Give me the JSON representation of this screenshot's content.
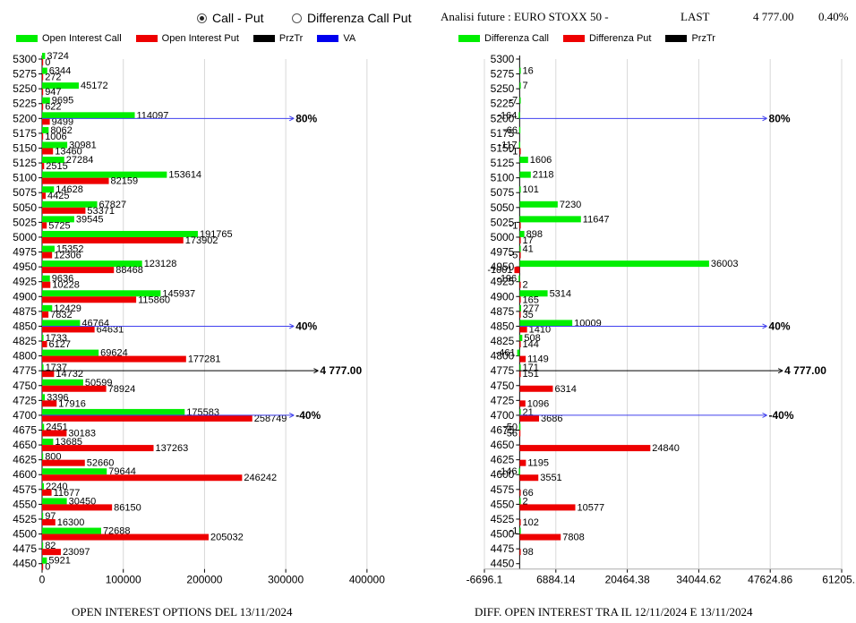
{
  "controls": {
    "radio_call_put": "Call - Put",
    "radio_diff": "Differenza Call Put",
    "selected": "call_put"
  },
  "header": {
    "title": "Analisi future : EURO STOXX 50 -",
    "last_label": "LAST",
    "last_value": "4 777.00",
    "change_pct": "0.40%"
  },
  "colors": {
    "call": "#00ee00",
    "put": "#ee0000",
    "przt": "#000000",
    "va": "#0000ee"
  },
  "chart_data": [
    {
      "type": "bar",
      "orientation": "horizontal",
      "title": "OPEN INTEREST OPTIONS DEL 13/11/2024",
      "legend": [
        "Open Interest Call",
        "Open Interest Put",
        "PrzTr",
        "VA"
      ],
      "categories": [
        "5300",
        "5275",
        "5250",
        "5225",
        "5200",
        "5175",
        "5150",
        "5125",
        "5100",
        "5075",
        "5050",
        "5025",
        "5000",
        "4975",
        "4950",
        "4925",
        "4900",
        "4875",
        "4850",
        "4825",
        "4800",
        "4775",
        "4750",
        "4725",
        "4700",
        "4675",
        "4650",
        "4625",
        "4600",
        "4575",
        "4550",
        "4525",
        "4500",
        "4475",
        "4450"
      ],
      "series": [
        {
          "name": "Open Interest Call",
          "values": [
            3724,
            6344,
            45172,
            9695,
            114097,
            8062,
            30981,
            27284,
            153614,
            14628,
            67827,
            39545,
            191765,
            15352,
            123128,
            9636,
            145937,
            12429,
            46764,
            1733,
            69624,
            1737,
            50599,
            3396,
            175583,
            2451,
            13685,
            800,
            79644,
            2240,
            30450,
            97,
            72688,
            82,
            5921
          ]
        },
        {
          "name": "Open Interest Put",
          "values": [
            0,
            272,
            947,
            622,
            9499,
            1006,
            13460,
            2515,
            82159,
            4425,
            53371,
            5725,
            173902,
            12306,
            88468,
            10228,
            115860,
            7832,
            64631,
            6127,
            177281,
            14732,
            78924,
            17916,
            258749,
            30183,
            137263,
            52660,
            246242,
            11677,
            86150,
            16300,
            205032,
            23097,
            0
          ]
        }
      ],
      "xticks": [
        "0",
        "100000",
        "200000",
        "300000",
        "400000"
      ],
      "xlim": [
        0,
        420000
      ],
      "reference_lines": [
        {
          "label": "80%",
          "strike": "5200",
          "color": "blue",
          "value": 310000
        },
        {
          "label": "40%",
          "strike": "4850",
          "color": "blue",
          "value": 310000
        },
        {
          "label": "4 777.00",
          "strike": "4775",
          "color": "black",
          "value": 340000
        },
        {
          "label": "-40%",
          "strike": "4700",
          "color": "blue",
          "value": 310000
        }
      ]
    },
    {
      "type": "bar",
      "orientation": "horizontal",
      "title": "DIFF. OPEN INTEREST TRA IL 12/11/2024 E 13/11/2024",
      "legend": [
        "Differenza Call",
        "Differenza Put",
        "PrzTr"
      ],
      "categories": [
        "5300",
        "5275",
        "5250",
        "5225",
        "5200",
        "5175",
        "5150",
        "5125",
        "5100",
        "5075",
        "5050",
        "5025",
        "5000",
        "4975",
        "4950",
        "4925",
        "4900",
        "4875",
        "4850",
        "4825",
        "4800",
        "4775",
        "4750",
        "4725",
        "4700",
        "4675",
        "4650",
        "4625",
        "4600",
        "4575",
        "4550",
        "4525",
        "4500",
        "4475",
        "4450"
      ],
      "series": [
        {
          "name": "Differenza Call",
          "values": [
            null,
            16,
            7,
            -7,
            -164,
            -66,
            -117,
            1606,
            2118,
            101,
            7230,
            11647,
            898,
            41,
            36003,
            -196,
            5314,
            277,
            10009,
            508,
            -461,
            171,
            null,
            null,
            21,
            -50,
            null,
            null,
            -146,
            null,
            2,
            null,
            -1,
            null,
            null
          ]
        },
        {
          "name": "Differenza Put",
          "values": [
            null,
            null,
            null,
            null,
            null,
            null,
            -1,
            null,
            null,
            null,
            null,
            -1,
            17,
            -5,
            -1001,
            2,
            165,
            35,
            1410,
            144,
            1149,
            151,
            6314,
            1096,
            3686,
            -56,
            24840,
            1195,
            3551,
            66,
            10577,
            102,
            7808,
            98,
            null
          ]
        }
      ],
      "xticks": [
        "-6696.1",
        "6884.14",
        "20464.38",
        "34044.62",
        "47624.86",
        "61205.1"
      ],
      "xlim": [
        -6696.1,
        61205.1
      ],
      "reference_lines": [
        {
          "label": "80%",
          "strike": "5200",
          "color": "blue",
          "value": 47000
        },
        {
          "label": "40%",
          "strike": "4850",
          "color": "blue",
          "value": 47000
        },
        {
          "label": "4 777.00",
          "strike": "4775",
          "color": "black",
          "value": 50000
        },
        {
          "label": "-40%",
          "strike": "4700",
          "color": "blue",
          "value": 47000
        }
      ]
    }
  ]
}
